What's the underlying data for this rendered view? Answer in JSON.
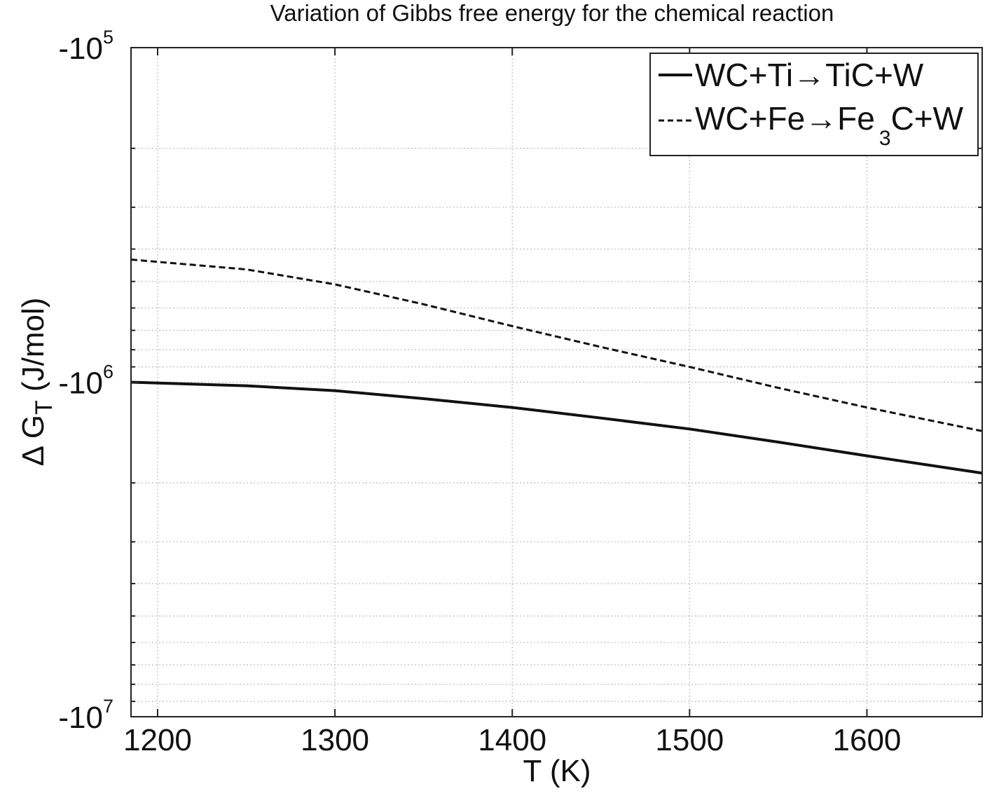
{
  "chart_data": {
    "type": "line",
    "title": "Variation of Gibbs free energy for the chemical reaction",
    "xlabel": "T (K)",
    "ylabel": {
      "prefix": "Δ G",
      "subscript": "T",
      "suffix": " (J/mol)"
    },
    "xlim": [
      1185,
      1665
    ],
    "ylim": [
      -100000,
      -10000000
    ],
    "yscale": "log",
    "grid": true,
    "legend_position": "top-right",
    "x_ticks": [
      "1200",
      "1300",
      "1400",
      "1500",
      "1600"
    ],
    "y_ticks": [
      {
        "base": "-10",
        "exp": "5"
      },
      {
        "base": "-10",
        "exp": "6"
      },
      {
        "base": "-10",
        "exp": "7"
      }
    ],
    "x": [
      1185,
      1250,
      1300,
      1350,
      1400,
      1450,
      1500,
      1550,
      1600,
      1665
    ],
    "series": [
      {
        "name": "WC+Ti→TiC+W",
        "legend_main": "WC+Ti→TiC+W",
        "line_style": "solid",
        "values": [
          -1000000,
          -1025000,
          -1060000,
          -1120000,
          -1190000,
          -1280000,
          -1380000,
          -1510000,
          -1660000,
          -1870000
        ]
      },
      {
        "name": "WC+Fe→Fe3C+W",
        "legend_main": "WC+Fe→Fe",
        "legend_sub": "3",
        "legend_tail": "C+W",
        "line_style": "dashed",
        "values": [
          -430000,
          -460000,
          -510000,
          -585000,
          -680000,
          -785000,
          -900000,
          -1040000,
          -1190000,
          -1400000
        ]
      }
    ]
  }
}
